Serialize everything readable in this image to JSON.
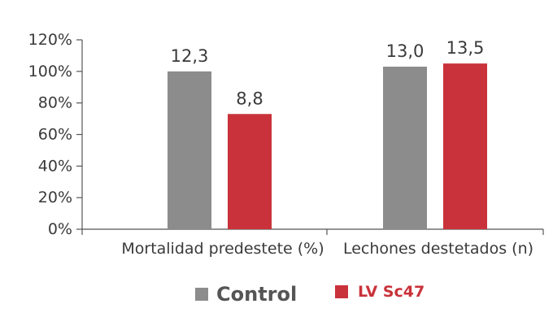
{
  "chart_data": {
    "type": "bar",
    "categories": [
      "Mortalidad predestete (%)",
      "Lechones destetados (n)"
    ],
    "series": [
      {
        "name": "Control",
        "values": [
          100,
          103
        ],
        "labels": [
          "12,3",
          "13,0"
        ],
        "color": "#8c8c8c"
      },
      {
        "name": "LV Sc47",
        "values": [
          73,
          105
        ],
        "labels": [
          "8,8",
          "13,5"
        ],
        "color": "#c9323a"
      }
    ],
    "ylim": [
      0,
      120
    ],
    "yticks": [
      "0%",
      "20%",
      "40%",
      "60%",
      "80%",
      "100%",
      "120%"
    ],
    "xlabel": "",
    "ylabel": "",
    "grid": false,
    "legend_position": "bottom-center"
  }
}
